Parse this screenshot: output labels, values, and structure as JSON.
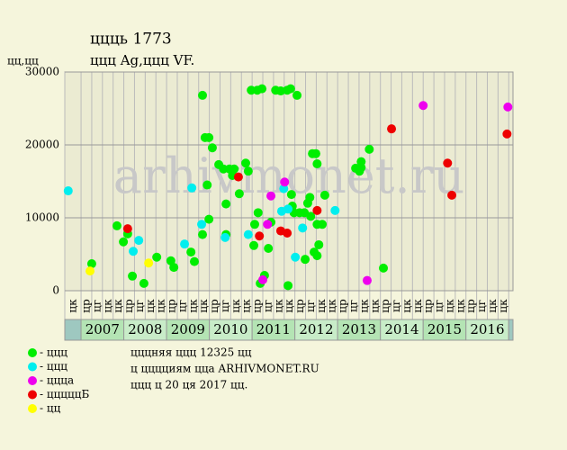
{
  "chart_data": {
    "type": "scatter",
    "title": "ццць 1773",
    "subtitle": "ццц Ag,ццц VF.",
    "y_label": "цц,цц",
    "watermark": "arhivmonet.ru",
    "xlim": [
      2006.62,
      2017.1
    ],
    "ylim": [
      0,
      30000
    ],
    "yticks": [
      0,
      10000,
      20000,
      30000
    ],
    "xticks": [
      2007,
      2008,
      2009,
      2010,
      2011,
      2012,
      2013,
      2014,
      2015,
      2016
    ],
    "x_sublabels": [
      "цк",
      "цр",
      "цг",
      "цк",
      "цк",
      "цр",
      "цг",
      "цк",
      "цк",
      "цр",
      "цг",
      "цк",
      "цк",
      "цр",
      "цг",
      "цк",
      "цк",
      "цр",
      "цг",
      "цк",
      "цк",
      "цр",
      "цг",
      "цк",
      "цк",
      "цр",
      "цг",
      "цк",
      "цк",
      "цр",
      "цг",
      "цк",
      "цк",
      "цр",
      "цг",
      "цк",
      "цк",
      "цр",
      "цг",
      "цк",
      "цк"
    ],
    "grid": true,
    "series": [
      {
        "name": "- ццц",
        "color": "#00ee00",
        "x": [
          2007.25,
          2007.84,
          2007.99,
          2008.09,
          2008.2,
          2008.47,
          2008.77,
          2009.1,
          2009.17,
          2009.57,
          2009.65,
          2009.84,
          2009.84,
          2009.9,
          2009.95,
          2009.99,
          2009.99,
          2010.07,
          2010.22,
          2010.33,
          2010.39,
          2010.39,
          2010.47,
          2010.54,
          2010.58,
          2010.7,
          2010.85,
          2010.91,
          2010.98,
          2011.04,
          2011.06,
          2011.12,
          2011.14,
          2011.19,
          2011.23,
          2011.29,
          2011.38,
          2011.44,
          2011.55,
          2011.67,
          2011.84,
          2011.82,
          2011.9,
          2011.92,
          2011.94,
          2011.98,
          2012.05,
          2012.11,
          2012.24,
          2012.22,
          2012.3,
          2012.35,
          2012.37,
          2012.41,
          2012.45,
          2012.49,
          2012.52,
          2012.52,
          2012.56,
          2012.52,
          2012.64,
          2012.7,
          2013.42,
          2013.51,
          2013.55,
          2013.55,
          2013.74,
          2014.07
        ],
        "values": [
          3700,
          8900,
          6700,
          7800,
          2000,
          1000,
          4600,
          4100,
          3200,
          5300,
          4000,
          26800,
          7700,
          21000,
          14500,
          21000,
          9800,
          19600,
          17300,
          16700,
          7700,
          11900,
          16700,
          15800,
          16700,
          13300,
          17500,
          16400,
          27500,
          6200,
          9100,
          27500,
          10700,
          1000,
          27700,
          2100,
          5800,
          9400,
          27500,
          27400,
          700,
          27500,
          27700,
          13200,
          11600,
          10700,
          26800,
          10700,
          4300,
          10700,
          12000,
          12800,
          10200,
          18800,
          5300,
          18800,
          17400,
          4800,
          6300,
          9100,
          9100,
          13100,
          16800,
          16400,
          17700,
          16900,
          19400,
          3100
        ]
      },
      {
        "name": "- ццц",
        "color": "#00eeee",
        "x": [
          2006.7,
          2008.22,
          2008.35,
          2009.42,
          2009.59,
          2009.82,
          2010.37,
          2010.91,
          2011.69,
          2011.74,
          2011.84,
          2012.01,
          2012.18,
          2012.94
        ],
        "values": [
          13700,
          5400,
          6900,
          6400,
          14100,
          9100,
          7300,
          7700,
          10900,
          14000,
          11200,
          4600,
          8600,
          11000
        ]
      },
      {
        "name": "- ццца",
        "color": "#ee00ee",
        "x": [
          2011.25,
          2011.36,
          2011.44,
          2011.76,
          2013.69,
          2015.0,
          2016.98
        ],
        "values": [
          1500,
          9100,
          13000,
          14900,
          1400,
          25400,
          25200
        ]
      },
      {
        "name": "- цццццБ",
        "color": "#ee0000",
        "x": [
          2008.09,
          2010.68,
          2011.17,
          2011.67,
          2011.82,
          2012.52,
          2014.26,
          2015.57,
          2015.67,
          2016.96
        ],
        "values": [
          8500,
          15600,
          7500,
          8200,
          7900,
          11000,
          22200,
          17500,
          13100,
          21500
        ]
      },
      {
        "name": "- цц",
        "color": "#ffff00",
        "x": [
          2007.21,
          2008.58
        ],
        "values": [
          2700,
          3800
        ]
      }
    ],
    "notes": [
      "цццняя ццц 12325 цц",
      "ц цццциям ццa ARHIVMONET.RU",
      "ццц ц 20 ця 2017 цц."
    ]
  }
}
